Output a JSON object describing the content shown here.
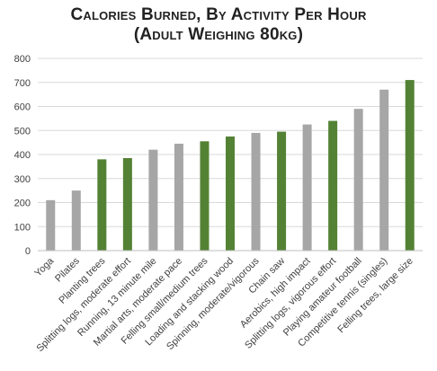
{
  "chart_data": {
    "type": "bar",
    "title_lines": [
      "Calories Burned, By Activity Per Hour",
      "(Adult Weighing 80kg)"
    ],
    "xlabel": "",
    "ylabel": "",
    "ylim": [
      0,
      800
    ],
    "yticks": [
      0,
      100,
      200,
      300,
      400,
      500,
      600,
      700,
      800
    ],
    "grid": true,
    "legend": "none",
    "categories": [
      "Yoga",
      "Pilates",
      "Planting trees",
      "Splitting logs, moderate effort",
      "Running, 13 minute mile",
      "Martial arts, moderate pace",
      "Felling small/medium trees",
      "Loading and stacking wood",
      "Spinning, moderate/vigorous",
      "Chain saw",
      "Aerobics, high impact",
      "Splitting logs, vigorous effort",
      "Playing amateur football",
      "Competitive tennis (singles)",
      "Felling trees, large size"
    ],
    "values": [
      210,
      250,
      380,
      385,
      420,
      445,
      455,
      475,
      490,
      495,
      525,
      540,
      590,
      670,
      710
    ],
    "bar_kinds": [
      "gray",
      "gray",
      "green",
      "green",
      "gray",
      "gray",
      "green",
      "green",
      "gray",
      "green",
      "gray",
      "green",
      "gray",
      "gray",
      "green"
    ],
    "colors": {
      "gray": "#a6a6a6",
      "green": "#548235",
      "grid": "#d9d9d9",
      "axis": "#bfbfbf",
      "text": "#404040"
    }
  }
}
